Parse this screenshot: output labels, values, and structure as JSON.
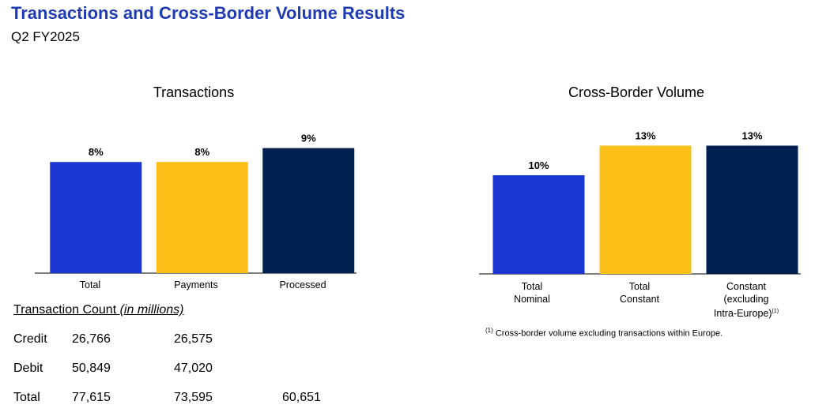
{
  "page": {
    "title": "Transactions and Cross-Border Volume Results",
    "subtitle": "Q2 FY2025"
  },
  "colors": {
    "blue": "#1a36d3",
    "yellow": "#fbbf17",
    "navy": "#002050",
    "title": "#1f3bb3"
  },
  "chart_data": [
    {
      "type": "bar",
      "title": "Transactions",
      "categories": [
        "Total",
        "Payments",
        "Processed"
      ],
      "values": [
        8,
        8,
        9
      ],
      "data_labels": [
        "8%",
        "8%",
        "9%"
      ],
      "colors": [
        "#1a36d3",
        "#fbbf17",
        "#002050"
      ],
      "xlabel": "",
      "ylabel": "",
      "ylim": [
        0,
        10
      ],
      "grid": false
    },
    {
      "type": "bar",
      "title": "Cross-Border Volume",
      "categories": [
        "Total Nominal",
        "Total Constant",
        "Constant (excluding Intra-Europe)"
      ],
      "category_lines": [
        [
          "Total",
          "Nominal"
        ],
        [
          "Total",
          "Constant"
        ],
        [
          "Constant",
          "(excluding",
          "Intra-Europe)"
        ]
      ],
      "values": [
        10,
        13,
        13
      ],
      "data_labels": [
        "10%",
        "13%",
        "13%"
      ],
      "colors": [
        "#1a36d3",
        "#fbbf17",
        "#002050"
      ],
      "xlabel": "",
      "ylabel": "",
      "ylim": [
        0,
        14
      ],
      "grid": false
    }
  ],
  "table": {
    "header": "Transaction Count",
    "unit": "(in millions)",
    "rows": [
      {
        "label": "Credit",
        "total": "26,766",
        "payments": "26,575",
        "processed": ""
      },
      {
        "label": "Debit",
        "total": "50,849",
        "payments": "47,020",
        "processed": ""
      },
      {
        "label": "Total",
        "total": "77,615",
        "payments": "73,595",
        "processed": "60,651"
      }
    ]
  },
  "footnote": {
    "marker": "(1)",
    "text": "Cross-border volume excluding transactions within Europe."
  }
}
